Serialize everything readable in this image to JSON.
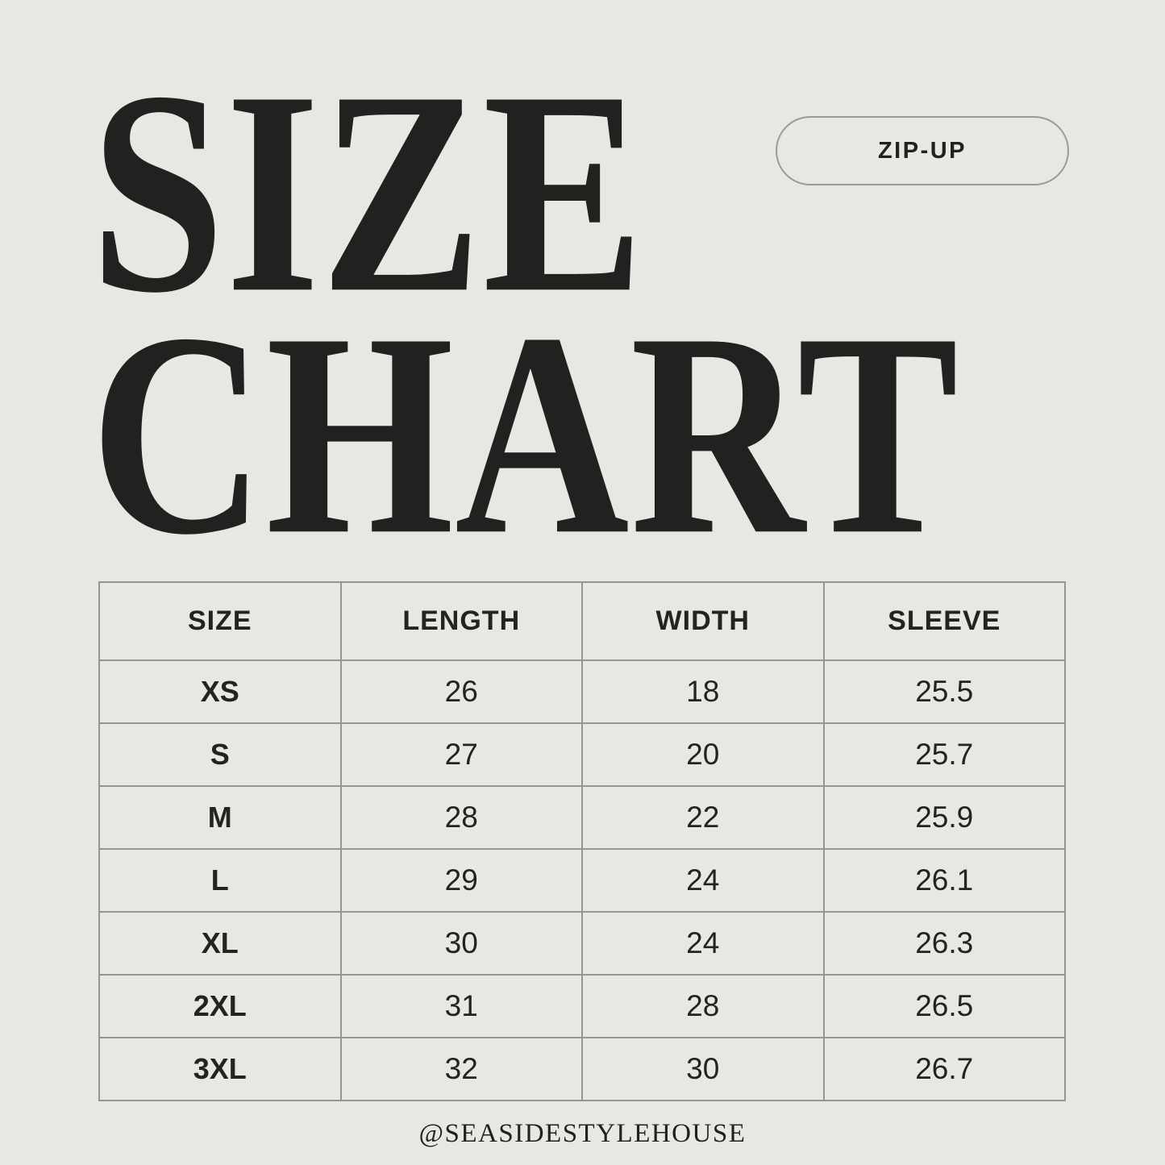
{
  "page": {
    "background_color": "#e9e7e3",
    "text_color": "#242321",
    "border_color": "#96958f"
  },
  "title": {
    "line1": "SIZE",
    "line2": "CHART"
  },
  "badge": {
    "label": "ZIP-UP"
  },
  "footer": {
    "handle": "@SEASIDESTYLEHOUSE"
  },
  "chart_data": {
    "type": "table",
    "title": "SIZE CHART",
    "badge": "ZIP-UP",
    "columns": [
      "SIZE",
      "LENGTH",
      "WIDTH",
      "SLEEVE"
    ],
    "rows": [
      [
        "XS",
        "26",
        "18",
        "25.5"
      ],
      [
        "S",
        "27",
        "20",
        "25.7"
      ],
      [
        "M",
        "28",
        "22",
        "25.9"
      ],
      [
        "L",
        "29",
        "24",
        "26.1"
      ],
      [
        "XL",
        "30",
        "24",
        "26.3"
      ],
      [
        "2XL",
        "31",
        "28",
        "26.5"
      ],
      [
        "3XL",
        "32",
        "30",
        "26.7"
      ]
    ]
  }
}
